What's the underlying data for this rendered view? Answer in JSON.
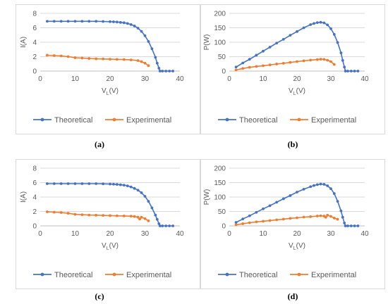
{
  "colors": {
    "theoretical": "#4472C4",
    "experimental": "#ED7D31",
    "grid": "#d9d9d9",
    "text": "#595959"
  },
  "captions": [
    "(a)",
    "(b)",
    "(c)",
    "(d)"
  ],
  "chart_data": [
    {
      "type": "line",
      "caption": "(a)",
      "xlabel": "V",
      "xlabel_sub": "L",
      "xlabel_unit": "(V)",
      "ylabel": "I(A)",
      "xlim": [
        0,
        40
      ],
      "ylim": [
        0,
        8
      ],
      "xticks": [
        "0",
        "10",
        "20",
        "30",
        "40"
      ],
      "yticks": [
        "0",
        "2",
        "4",
        "6",
        "8"
      ],
      "legend": "bottom",
      "series": [
        {
          "name": "Theoretical",
          "color": "#4472C4",
          "x": [
            2,
            4,
            6,
            8,
            10,
            12,
            14,
            16,
            18,
            20,
            21,
            22,
            23,
            24,
            25,
            26,
            27,
            28,
            29,
            30,
            31,
            32,
            33,
            33.5,
            34,
            34.3,
            35,
            36,
            37,
            38
          ],
          "y": [
            6.9,
            6.9,
            6.9,
            6.9,
            6.9,
            6.9,
            6.9,
            6.9,
            6.88,
            6.85,
            6.83,
            6.8,
            6.75,
            6.7,
            6.6,
            6.45,
            6.25,
            5.95,
            5.5,
            4.9,
            4.1,
            3.1,
            1.9,
            1.1,
            0.4,
            0,
            0,
            0,
            0,
            0
          ]
        },
        {
          "name": "Experimental",
          "color": "#ED7D31",
          "x": [
            2,
            4,
            6,
            8,
            10,
            12,
            14,
            16,
            18,
            20,
            22,
            24,
            26,
            28,
            29,
            30,
            31
          ],
          "y": [
            2.2,
            2.15,
            2.1,
            2.0,
            1.85,
            1.8,
            1.75,
            1.7,
            1.68,
            1.65,
            1.62,
            1.6,
            1.55,
            1.45,
            1.3,
            1.1,
            0.75
          ]
        }
      ]
    },
    {
      "type": "line",
      "caption": "(b)",
      "xlabel": "V",
      "xlabel_sub": "L",
      "xlabel_unit": "(V)",
      "ylabel": "P(W)",
      "xlim": [
        0,
        40
      ],
      "ylim": [
        0,
        200
      ],
      "xticks": [
        "0",
        "10",
        "20",
        "30",
        "40"
      ],
      "yticks": [
        "0",
        "50",
        "100",
        "150",
        "200"
      ],
      "legend": "bottom",
      "series": [
        {
          "name": "Theoretical",
          "color": "#4472C4",
          "x": [
            2,
            4,
            6,
            8,
            10,
            12,
            14,
            16,
            18,
            20,
            22,
            24,
            25,
            26,
            27,
            28,
            29,
            30,
            31,
            32,
            33,
            33.5,
            34,
            34.3,
            35,
            36,
            37,
            38
          ],
          "y": [
            14,
            28,
            41,
            55,
            69,
            83,
            97,
            110,
            124,
            137,
            150,
            161,
            165,
            168,
            169,
            167,
            160,
            147,
            127,
            99,
            63,
            37,
            14,
            0,
            0,
            0,
            0,
            0
          ]
        },
        {
          "name": "Experimental",
          "color": "#ED7D31",
          "x": [
            2,
            4,
            6,
            8,
            10,
            12,
            14,
            16,
            18,
            20,
            22,
            24,
            26,
            27,
            28,
            29,
            30,
            31
          ],
          "y": [
            4,
            9,
            13,
            16,
            18.5,
            21.5,
            24.5,
            27,
            30,
            33,
            35.5,
            38,
            40,
            41,
            40.5,
            37.5,
            33,
            23
          ]
        }
      ]
    },
    {
      "type": "line",
      "caption": "(c)",
      "xlabel": "V",
      "xlabel_sub": "L",
      "xlabel_unit": "(V)",
      "ylabel": "I(A)",
      "xlim": [
        0,
        40
      ],
      "ylim": [
        0,
        8
      ],
      "xticks": [
        "0",
        "10",
        "20",
        "30",
        "40"
      ],
      "yticks": [
        "0",
        "2",
        "4",
        "6",
        "8"
      ],
      "legend": "bottom",
      "series": [
        {
          "name": "Theoretical",
          "color": "#4472C4",
          "x": [
            2,
            4,
            6,
            8,
            10,
            12,
            14,
            16,
            18,
            20,
            21,
            22,
            23,
            24,
            25,
            26,
            27,
            28,
            29,
            30,
            31,
            32,
            33,
            33.5,
            34,
            34.3,
            35,
            36,
            37,
            38
          ],
          "y": [
            5.85,
            5.85,
            5.85,
            5.85,
            5.85,
            5.85,
            5.85,
            5.85,
            5.83,
            5.8,
            5.78,
            5.75,
            5.7,
            5.65,
            5.55,
            5.4,
            5.2,
            4.95,
            4.6,
            4.1,
            3.4,
            2.5,
            1.5,
            0.9,
            0.3,
            0,
            0,
            0,
            0,
            0
          ]
        },
        {
          "name": "Experimental",
          "color": "#ED7D31",
          "x": [
            2,
            4,
            6,
            8,
            10,
            12,
            14,
            16,
            18,
            20,
            22,
            24,
            26,
            27,
            28,
            28.5,
            29,
            30,
            31
          ],
          "y": [
            1.95,
            1.9,
            1.85,
            1.75,
            1.6,
            1.55,
            1.5,
            1.48,
            1.45,
            1.42,
            1.4,
            1.38,
            1.35,
            1.3,
            1.2,
            0.95,
            1.2,
            1.0,
            0.7
          ]
        }
      ]
    },
    {
      "type": "line",
      "caption": "(d)",
      "xlabel": "V",
      "xlabel_sub": "L",
      "xlabel_unit": "(V)",
      "ylabel": "P(W)",
      "xlim": [
        0,
        40
      ],
      "ylim": [
        0,
        200
      ],
      "xticks": [
        "0",
        "10",
        "20",
        "30",
        "40"
      ],
      "yticks": [
        "0",
        "50",
        "100",
        "150",
        "200"
      ],
      "legend": "bottom",
      "series": [
        {
          "name": "Theoretical",
          "color": "#4472C4",
          "x": [
            2,
            4,
            6,
            8,
            10,
            12,
            14,
            16,
            18,
            20,
            22,
            24,
            25,
            26,
            27,
            28,
            29,
            30,
            31,
            32,
            33,
            33.5,
            34,
            34.3,
            35,
            36,
            37,
            38
          ],
          "y": [
            12,
            24,
            35,
            47,
            59,
            70,
            82,
            94,
            105,
            117,
            127,
            136,
            140,
            143,
            145,
            144,
            139,
            129,
            112,
            85,
            52,
            30,
            10,
            0,
            0,
            0,
            0,
            0
          ]
        },
        {
          "name": "Experimental",
          "color": "#ED7D31",
          "x": [
            2,
            4,
            6,
            8,
            10,
            12,
            14,
            16,
            18,
            20,
            22,
            24,
            26,
            27,
            28,
            28.5,
            29,
            30,
            31,
            32
          ],
          "y": [
            4,
            7.5,
            11,
            14,
            16,
            18.5,
            21,
            23.5,
            26,
            28,
            30.5,
            32,
            34,
            35,
            34,
            30,
            37,
            33,
            27,
            23
          ]
        }
      ]
    }
  ]
}
